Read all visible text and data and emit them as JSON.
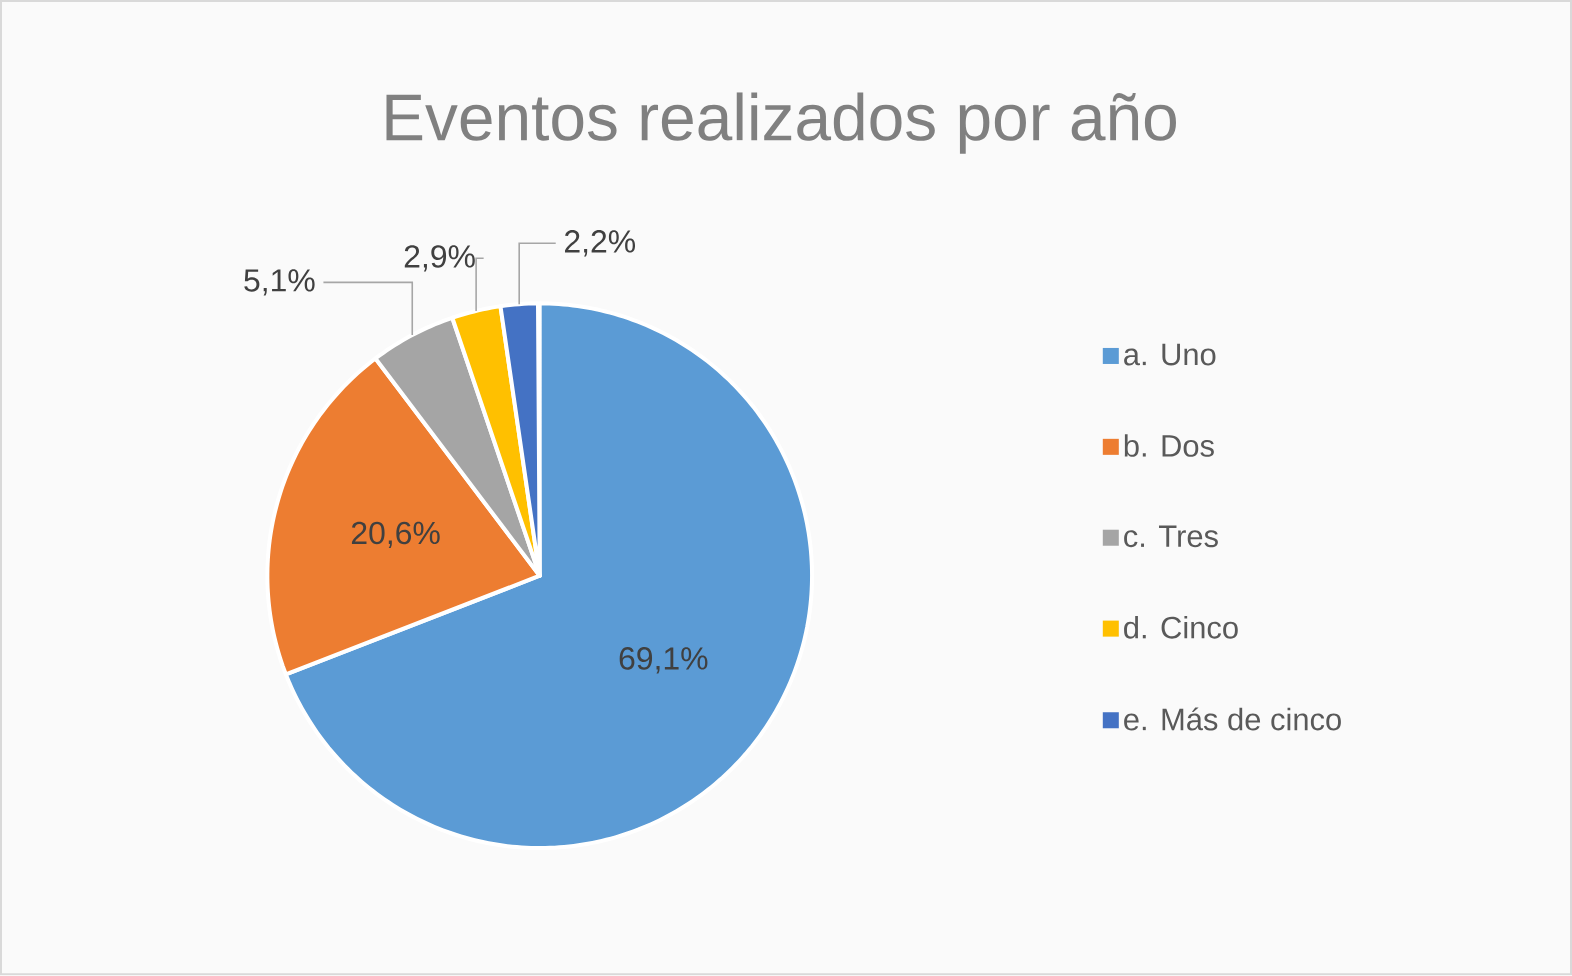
{
  "chart_data": {
    "type": "pie",
    "title": "Eventos realizados por año",
    "categories": [
      "a. Uno",
      "b. Dos",
      "c. Tres",
      "d. Cinco",
      "e. Más de cinco"
    ],
    "values": [
      69.1,
      20.6,
      5.1,
      2.9,
      2.2
    ],
    "colors": [
      "#5b9bd5",
      "#ed7d31",
      "#a5a5a5",
      "#ffc000",
      "#4472c4"
    ],
    "value_labels": [
      "69,1%",
      "20,6%",
      "5,1%",
      "2,9%",
      "2,2%"
    ],
    "legend": "right"
  }
}
